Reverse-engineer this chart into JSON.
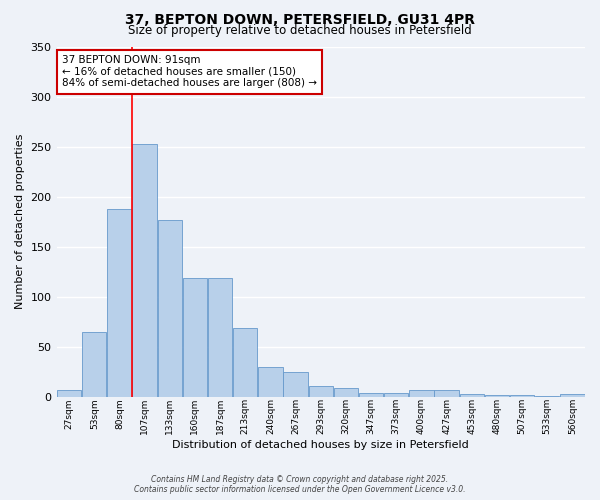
{
  "title": "37, BEPTON DOWN, PETERSFIELD, GU31 4PR",
  "subtitle": "Size of property relative to detached houses in Petersfield",
  "xlabel": "Distribution of detached houses by size in Petersfield",
  "ylabel": "Number of detached properties",
  "categories": [
    "27sqm",
    "53sqm",
    "80sqm",
    "107sqm",
    "133sqm",
    "160sqm",
    "187sqm",
    "213sqm",
    "240sqm",
    "267sqm",
    "293sqm",
    "320sqm",
    "347sqm",
    "373sqm",
    "400sqm",
    "427sqm",
    "453sqm",
    "480sqm",
    "507sqm",
    "533sqm",
    "560sqm"
  ],
  "bar_values": [
    7,
    65,
    188,
    253,
    177,
    119,
    119,
    69,
    30,
    25,
    11,
    9,
    4,
    4,
    7,
    7,
    3,
    2,
    2,
    1,
    3
  ],
  "bar_color": "#b8d0ea",
  "bar_edge_color": "#6699cc",
  "red_line_index": 2.5,
  "annotation_line1": "37 BEPTON DOWN: 91sqm",
  "annotation_line2": "← 16% of detached houses are smaller (150)",
  "annotation_line3": "84% of semi-detached houses are larger (808) →",
  "annotation_box_facecolor": "#ffffff",
  "annotation_box_edgecolor": "#cc0000",
  "ylim": [
    0,
    350
  ],
  "yticks": [
    0,
    50,
    100,
    150,
    200,
    250,
    300,
    350
  ],
  "background_color": "#eef2f8",
  "grid_color": "#ffffff",
  "footer_line1": "Contains HM Land Registry data © Crown copyright and database right 2025.",
  "footer_line2": "Contains public sector information licensed under the Open Government Licence v3.0."
}
